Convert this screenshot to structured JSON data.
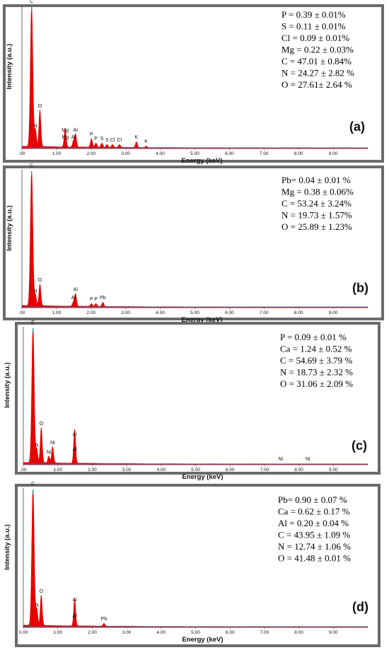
{
  "figure": {
    "panel_border_color": "#6b6b6b",
    "spectrum_color": "#e60000",
    "baseline_color": "#3a6fb0",
    "ylabel": "Intensity (a.u.)",
    "xlabel": "Energy (keV)"
  },
  "chart_data": [
    {
      "type": "line",
      "panel_label": "(a)",
      "xlabel": "Energy (keV)",
      "ylabel": "Intensity (a.u.)",
      "xlim": [
        0,
        10
      ],
      "x_ticks": [
        ".00",
        "1.00",
        "2.00",
        "3.00",
        "4.00",
        "5.00",
        "6.00",
        "7.00",
        "8.00",
        "9.00"
      ],
      "composition": [
        "P = 0.39 ± 0.01%",
        "S = 0.11 ± 0.01%",
        "Cl = 0.09 ± 0.01%",
        "Mg = 0.22 ± 0.03%",
        "C = 47.01 ± 0.84%",
        "N = 24.27 ± 2.82 %",
        "O = 27.61± 2.64 %"
      ],
      "peaks": [
        {
          "label": "C",
          "x": 0.28,
          "y": 100
        },
        {
          "label": "N",
          "x": 0.39,
          "y": 12
        },
        {
          "label": "O",
          "x": 0.52,
          "y": 26
        },
        {
          "label": "Mg",
          "x": 1.25,
          "y": 4
        },
        {
          "label": "Mg",
          "x": 1.25,
          "y": 9
        },
        {
          "label": "Al",
          "x": 1.49,
          "y": 4
        },
        {
          "label": "Al",
          "x": 1.55,
          "y": 9
        },
        {
          "label": "P",
          "x": 2.01,
          "y": 6
        },
        {
          "label": "P",
          "x": 2.14,
          "y": 3
        },
        {
          "label": "S",
          "x": 2.31,
          "y": 3
        },
        {
          "label": "S",
          "x": 2.46,
          "y": 2
        },
        {
          "label": "Cl",
          "x": 2.62,
          "y": 2
        },
        {
          "label": "Cl",
          "x": 2.82,
          "y": 2
        },
        {
          "label": "K",
          "x": 3.31,
          "y": 4
        },
        {
          "label": "K",
          "x": 3.59,
          "y": 1
        }
      ]
    },
    {
      "type": "line",
      "panel_label": "(b)",
      "xlabel": "Energy (keV)",
      "ylabel": "Intensity (a.u.)",
      "xlim": [
        0,
        10
      ],
      "x_ticks": [
        ".00",
        "1.00",
        "2.00",
        "3.00",
        "4.00",
        "5.00",
        "6.00",
        "7.00",
        "8.00",
        "9.00"
      ],
      "composition": [
        "Pb= 0.04 ± 0.01 %",
        "Mg = 0.38 ± 0.06%",
        "C = 53.24 ± 3.24%",
        "N = 19.73 ± 1.57%",
        "O = 25.89 ± 1.23%"
      ],
      "peaks": [
        {
          "label": "C",
          "x": 0.28,
          "y": 100
        },
        {
          "label": "N",
          "x": 0.39,
          "y": 8
        },
        {
          "label": "O",
          "x": 0.52,
          "y": 16
        },
        {
          "label": "Al",
          "x": 1.49,
          "y": 3
        },
        {
          "label": "Al",
          "x": 1.55,
          "y": 9
        },
        {
          "label": "P",
          "x": 2.01,
          "y": 2
        },
        {
          "label": "P",
          "x": 2.14,
          "y": 2
        },
        {
          "label": "Pb",
          "x": 2.34,
          "y": 3
        }
      ]
    },
    {
      "type": "line",
      "panel_label": "(c)",
      "xlabel": "Energy (keV)",
      "ylabel": "Intensity (a.u.)",
      "xlim": [
        0,
        10
      ],
      "x_ticks": [
        ".00",
        "1.00",
        "2.00",
        "3.00",
        "4.00",
        "5.00",
        "6.00",
        "7.00",
        "8.00",
        "9.00"
      ],
      "composition": [
        "P = 0.09 ± 0.01 %",
        "Ca = 1.24 ± 0.52 %",
        "C = 54.69 ± 3.79 %",
        "N =  18.73 ± 2.32 %",
        "O = 31.06 ± 2.09 %"
      ],
      "peaks": [
        {
          "label": "C",
          "x": 0.28,
          "y": 100
        },
        {
          "label": "N",
          "x": 0.39,
          "y": 10
        },
        {
          "label": "O",
          "x": 0.52,
          "y": 26
        },
        {
          "label": "Ni",
          "x": 0.74,
          "y": 5
        },
        {
          "label": "Ni",
          "x": 0.85,
          "y": 12
        },
        {
          "label": "Al",
          "x": 1.49,
          "y": 7
        },
        {
          "label": "Al",
          "x": 1.49,
          "y": 18
        },
        {
          "label": "Ni",
          "x": 7.47,
          "y": 0
        },
        {
          "label": "Ni",
          "x": 8.26,
          "y": 0
        }
      ]
    },
    {
      "type": "line",
      "panel_label": "(d)",
      "xlabel": "Energy (keV)",
      "ylabel": "Intensity (a.u.)",
      "xlim": [
        0,
        10
      ],
      "x_ticks": [
        "0.00",
        "1.00",
        "2.00",
        "3.00",
        "4.00",
        "5.00",
        "6.00",
        "7.00",
        "8.00",
        "9.00"
      ],
      "composition": [
        "Pb= 0.90 ± 0.07 %",
        "Ca = 0.62 ± 0.17 %",
        "Al = 0.20 ± 0.04 %",
        "C = 43.95 ± 1.09 %",
        "N =  12.74 ± 1.06 %",
        "O = 41.48 ± 0.01 %"
      ],
      "peaks": [
        {
          "label": "C",
          "x": 0.28,
          "y": 100
        },
        {
          "label": "N",
          "x": 0.39,
          "y": 12
        },
        {
          "label": "O",
          "x": 0.52,
          "y": 22
        },
        {
          "label": "Al",
          "x": 1.49,
          "y": 4
        },
        {
          "label": "Al",
          "x": 1.49,
          "y": 16
        },
        {
          "label": "Pb",
          "x": 2.34,
          "y": 2
        }
      ]
    }
  ]
}
